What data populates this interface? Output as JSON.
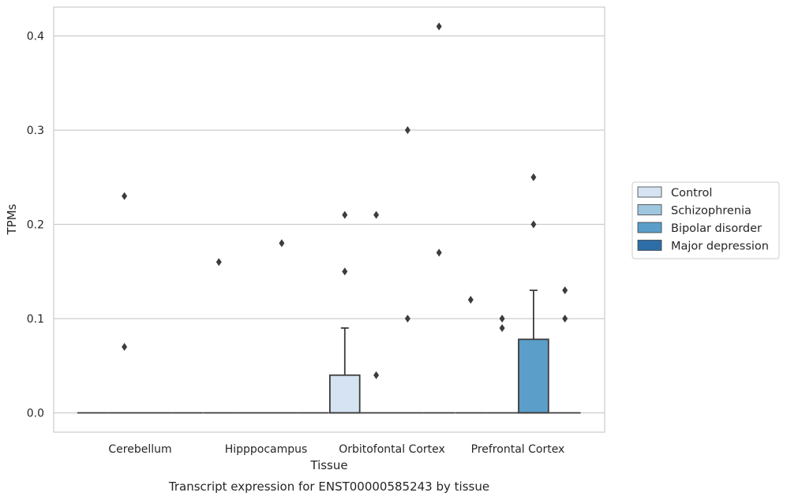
{
  "chart_data": {
    "type": "box",
    "title": "Transcript expression for ENST00000585243 by tissue",
    "xlabel": "Tissue",
    "ylabel": "TPMs",
    "ylim": [
      -0.02,
      0.43
    ],
    "yticks": [
      0.0,
      0.1,
      0.2,
      0.3,
      0.4
    ],
    "ytick_labels": [
      "0.0",
      "0.1",
      "0.2",
      "0.3",
      "0.4"
    ],
    "grid": "horizontal",
    "legend_position": "right",
    "categories": [
      "Cerebellum",
      "Hipppocampus",
      "Orbitofontal Cortex",
      "Prefrontal Cortex"
    ],
    "series": [
      {
        "name": "Control",
        "color": "#d5e3f2"
      },
      {
        "name": "Schizophrenia",
        "color": "#9ec6df"
      },
      {
        "name": "Bipolar disorder",
        "color": "#5b9ec9"
      },
      {
        "name": "Major depression",
        "color": "#2d6ea8"
      }
    ],
    "boxes": [
      {
        "category": 0,
        "series": 0,
        "q1": 0,
        "median": 0,
        "q3": 0,
        "whisker_low": 0,
        "whisker_high": 0,
        "outliers": []
      },
      {
        "category": 0,
        "series": 1,
        "q1": 0,
        "median": 0,
        "q3": 0,
        "whisker_low": 0,
        "whisker_high": 0,
        "outliers": [
          0.23,
          0.07
        ]
      },
      {
        "category": 0,
        "series": 2,
        "q1": 0,
        "median": 0,
        "q3": 0,
        "whisker_low": 0,
        "whisker_high": 0,
        "outliers": []
      },
      {
        "category": 0,
        "series": 3,
        "q1": 0,
        "median": 0,
        "q3": 0,
        "whisker_low": 0,
        "whisker_high": 0,
        "outliers": []
      },
      {
        "category": 1,
        "series": 0,
        "q1": 0,
        "median": 0,
        "q3": 0,
        "whisker_low": 0,
        "whisker_high": 0,
        "outliers": [
          0.16
        ]
      },
      {
        "category": 1,
        "series": 1,
        "q1": 0,
        "median": 0,
        "q3": 0,
        "whisker_low": 0,
        "whisker_high": 0,
        "outliers": []
      },
      {
        "category": 1,
        "series": 2,
        "q1": 0,
        "median": 0,
        "q3": 0,
        "whisker_low": 0,
        "whisker_high": 0,
        "outliers": [
          0.18
        ]
      },
      {
        "category": 1,
        "series": 3,
        "q1": 0,
        "median": 0,
        "q3": 0,
        "whisker_low": 0,
        "whisker_high": 0,
        "outliers": []
      },
      {
        "category": 2,
        "series": 0,
        "q1": 0,
        "median": 0,
        "q3": 0.04,
        "whisker_low": 0,
        "whisker_high": 0.09,
        "outliers": [
          0.21,
          0.15
        ]
      },
      {
        "category": 2,
        "series": 1,
        "q1": 0,
        "median": 0,
        "q3": 0,
        "whisker_low": 0,
        "whisker_high": 0,
        "outliers": [
          0.21,
          0.04
        ]
      },
      {
        "category": 2,
        "series": 2,
        "q1": 0,
        "median": 0,
        "q3": 0,
        "whisker_low": 0,
        "whisker_high": 0,
        "outliers": [
          0.3,
          0.1
        ]
      },
      {
        "category": 2,
        "series": 3,
        "q1": 0,
        "median": 0,
        "q3": 0,
        "whisker_low": 0,
        "whisker_high": 0,
        "outliers": [
          0.41,
          0.17
        ]
      },
      {
        "category": 3,
        "series": 0,
        "q1": 0,
        "median": 0,
        "q3": 0,
        "whisker_low": 0,
        "whisker_high": 0,
        "outliers": [
          0.12
        ]
      },
      {
        "category": 3,
        "series": 1,
        "q1": 0,
        "median": 0,
        "q3": 0,
        "whisker_low": 0,
        "whisker_high": 0,
        "outliers": [
          0.1,
          0.09
        ]
      },
      {
        "category": 3,
        "series": 2,
        "q1": 0,
        "median": 0,
        "q3": 0.078,
        "whisker_low": 0,
        "whisker_high": 0.13,
        "outliers": [
          0.25,
          0.2
        ]
      },
      {
        "category": 3,
        "series": 3,
        "q1": 0,
        "median": 0,
        "q3": 0,
        "whisker_low": 0,
        "whisker_high": 0,
        "outliers": [
          0.13,
          0.1
        ]
      }
    ]
  }
}
